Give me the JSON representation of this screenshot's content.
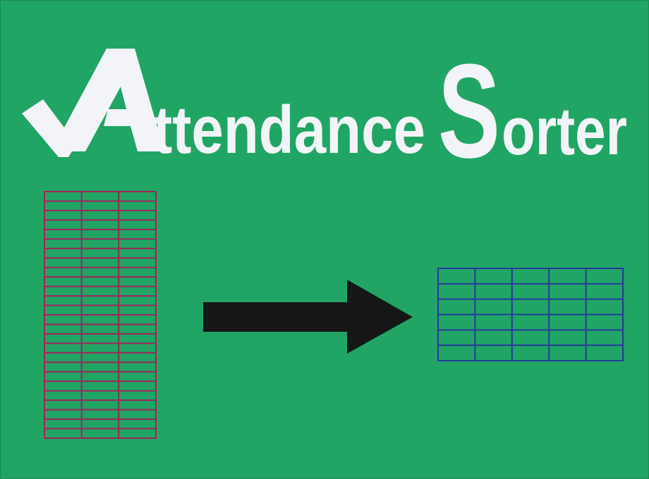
{
  "logo": {
    "title_cap_a": "A",
    "title_rest_1": "ttendance",
    "title_cap_s": "S",
    "title_rest_2": "orter"
  },
  "colors": {
    "background": "#21a565",
    "title_text": "#f2f4f7",
    "source_table": "#a1245a",
    "target_table": "#243a9c",
    "arrow": "#161616"
  },
  "icons": {
    "check": "check-mark-icon",
    "arrow": "right-arrow-icon",
    "source": "tall-spreadsheet-icon",
    "target": "wide-spreadsheet-icon"
  }
}
